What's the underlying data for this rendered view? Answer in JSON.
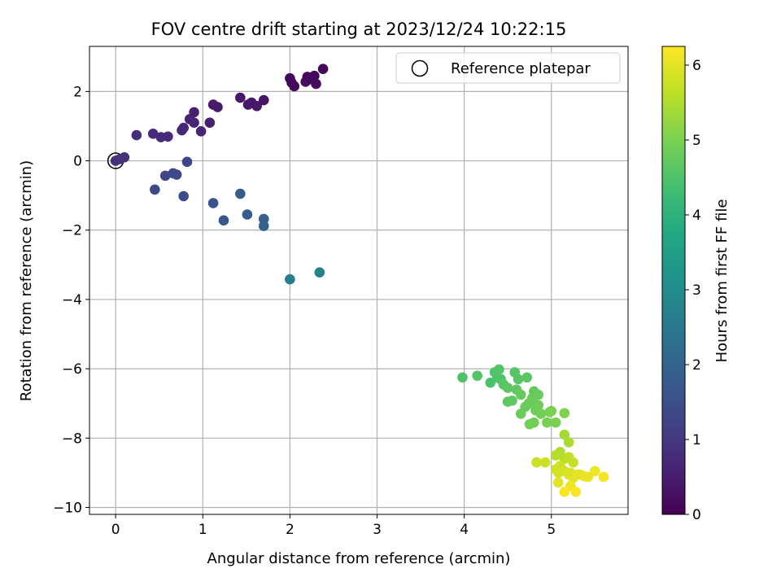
{
  "chart_data": {
    "type": "scatter",
    "title": "FOV centre drift starting at 2023/12/24 10:22:15",
    "xlabel": "Angular distance from reference (arcmin)",
    "ylabel": "Rotation from reference (arcmin)",
    "colorbar_label": "Hours from first FF file",
    "xlim": [
      -0.3,
      5.88
    ],
    "ylim": [
      -10.2,
      3.3
    ],
    "xticks": [
      0,
      1,
      2,
      3,
      4,
      5
    ],
    "yticks": [
      -10,
      -8,
      -6,
      -4,
      -2,
      0,
      2
    ],
    "colorbar_range": [
      0,
      6.25
    ],
    "colorbar_ticks": [
      0,
      1,
      2,
      3,
      4,
      5,
      6
    ],
    "colormap": "viridis",
    "grid": true,
    "legend_position": "top-right",
    "reference": {
      "label": "Reference platepar",
      "x": 0,
      "y": 0
    },
    "points": [
      [
        0.0,
        0.0,
        0.9
      ],
      [
        0.05,
        0.05,
        0.9
      ],
      [
        0.1,
        0.1,
        0.9
      ],
      [
        0.24,
        0.74,
        0.8
      ],
      [
        0.43,
        0.78,
        0.75
      ],
      [
        0.52,
        0.68,
        0.75
      ],
      [
        0.6,
        0.7,
        0.75
      ],
      [
        0.76,
        0.88,
        0.7
      ],
      [
        0.78,
        0.95,
        0.7
      ],
      [
        0.85,
        1.2,
        0.6
      ],
      [
        0.9,
        1.1,
        0.65
      ],
      [
        0.9,
        1.4,
        0.55
      ],
      [
        0.98,
        0.85,
        0.65
      ],
      [
        1.08,
        1.1,
        0.55
      ],
      [
        1.12,
        1.62,
        0.45
      ],
      [
        1.17,
        1.55,
        0.45
      ],
      [
        1.43,
        1.82,
        0.4
      ],
      [
        1.52,
        1.62,
        0.4
      ],
      [
        1.56,
        1.68,
        0.4
      ],
      [
        1.62,
        1.58,
        0.4
      ],
      [
        1.7,
        1.75,
        0.35
      ],
      [
        2.0,
        2.38,
        0.15
      ],
      [
        2.02,
        2.25,
        0.15
      ],
      [
        2.05,
        2.15,
        0.15
      ],
      [
        2.18,
        2.28,
        0.2
      ],
      [
        2.2,
        2.42,
        0.15
      ],
      [
        2.25,
        2.35,
        0.15
      ],
      [
        2.28,
        2.45,
        0.1
      ],
      [
        2.3,
        2.22,
        0.2
      ],
      [
        2.38,
        2.65,
        0.1
      ],
      [
        0.82,
        -0.03,
        1.3
      ],
      [
        0.57,
        -0.43,
        1.3
      ],
      [
        0.66,
        -0.36,
        1.35
      ],
      [
        0.7,
        -0.4,
        1.35
      ],
      [
        0.45,
        -0.83,
        1.4
      ],
      [
        0.78,
        -1.02,
        1.45
      ],
      [
        1.12,
        -1.22,
        1.6
      ],
      [
        1.24,
        -1.72,
        1.7
      ],
      [
        1.43,
        -0.95,
        1.8
      ],
      [
        1.51,
        -1.55,
        1.85
      ],
      [
        1.7,
        -1.68,
        1.9
      ],
      [
        1.7,
        -1.88,
        1.95
      ],
      [
        2.0,
        -3.42,
        2.65
      ],
      [
        2.34,
        -3.22,
        2.75
      ],
      [
        3.98,
        -6.25,
        4.5
      ],
      [
        4.15,
        -6.2,
        4.55
      ],
      [
        4.3,
        -6.4,
        4.45
      ],
      [
        4.35,
        -6.1,
        4.5
      ],
      [
        4.38,
        -6.25,
        4.5
      ],
      [
        4.4,
        -6.02,
        4.55
      ],
      [
        4.42,
        -6.3,
        4.5
      ],
      [
        4.45,
        -6.45,
        4.6
      ],
      [
        4.5,
        -6.55,
        4.65
      ],
      [
        4.5,
        -6.95,
        4.7
      ],
      [
        4.55,
        -6.92,
        4.7
      ],
      [
        4.58,
        -6.1,
        4.6
      ],
      [
        4.6,
        -6.6,
        4.7
      ],
      [
        4.62,
        -6.3,
        4.6
      ],
      [
        4.65,
        -6.75,
        4.75
      ],
      [
        4.65,
        -7.3,
        4.8
      ],
      [
        4.7,
        -7.1,
        4.8
      ],
      [
        4.72,
        -6.25,
        4.65
      ],
      [
        4.74,
        -7.0,
        4.8
      ],
      [
        4.75,
        -7.6,
        4.9
      ],
      [
        4.78,
        -6.85,
        4.8
      ],
      [
        4.8,
        -6.65,
        4.75
      ],
      [
        4.8,
        -7.55,
        4.9
      ],
      [
        4.82,
        -7.2,
        4.85
      ],
      [
        4.85,
        -6.75,
        4.8
      ],
      [
        4.85,
        -7.05,
        4.85
      ],
      [
        4.88,
        -7.3,
        4.9
      ],
      [
        4.95,
        -7.55,
        4.95
      ],
      [
        4.98,
        -7.25,
        4.95
      ],
      [
        5.0,
        -7.22,
        5.0
      ],
      [
        5.05,
        -7.55,
        5.0
      ],
      [
        5.15,
        -7.28,
        5.05
      ],
      [
        5.15,
        -7.9,
        5.4
      ],
      [
        5.2,
        -8.12,
        5.45
      ],
      [
        5.1,
        -8.4,
        5.5
      ],
      [
        5.05,
        -8.5,
        5.55
      ],
      [
        5.15,
        -8.6,
        5.6
      ],
      [
        5.2,
        -8.55,
        5.65
      ],
      [
        5.25,
        -8.7,
        5.7
      ],
      [
        4.83,
        -8.7,
        5.75
      ],
      [
        4.93,
        -8.7,
        5.75
      ],
      [
        5.05,
        -8.9,
        5.8
      ],
      [
        5.08,
        -9.0,
        5.85
      ],
      [
        5.1,
        -8.8,
        5.8
      ],
      [
        5.15,
        -8.95,
        5.85
      ],
      [
        5.2,
        -9.05,
        5.9
      ],
      [
        5.22,
        -9.0,
        5.9
      ],
      [
        5.25,
        -9.15,
        5.95
      ],
      [
        5.3,
        -9.05,
        6.0
      ],
      [
        5.33,
        -9.05,
        6.0
      ],
      [
        5.38,
        -9.1,
        6.05
      ],
      [
        5.42,
        -9.12,
        6.05
      ],
      [
        5.5,
        -8.95,
        6.1
      ],
      [
        5.6,
        -9.12,
        6.15
      ],
      [
        5.08,
        -9.28,
        6.0
      ],
      [
        5.22,
        -9.38,
        6.1
      ],
      [
        5.15,
        -9.55,
        6.2
      ],
      [
        5.28,
        -9.55,
        6.2
      ]
    ]
  }
}
